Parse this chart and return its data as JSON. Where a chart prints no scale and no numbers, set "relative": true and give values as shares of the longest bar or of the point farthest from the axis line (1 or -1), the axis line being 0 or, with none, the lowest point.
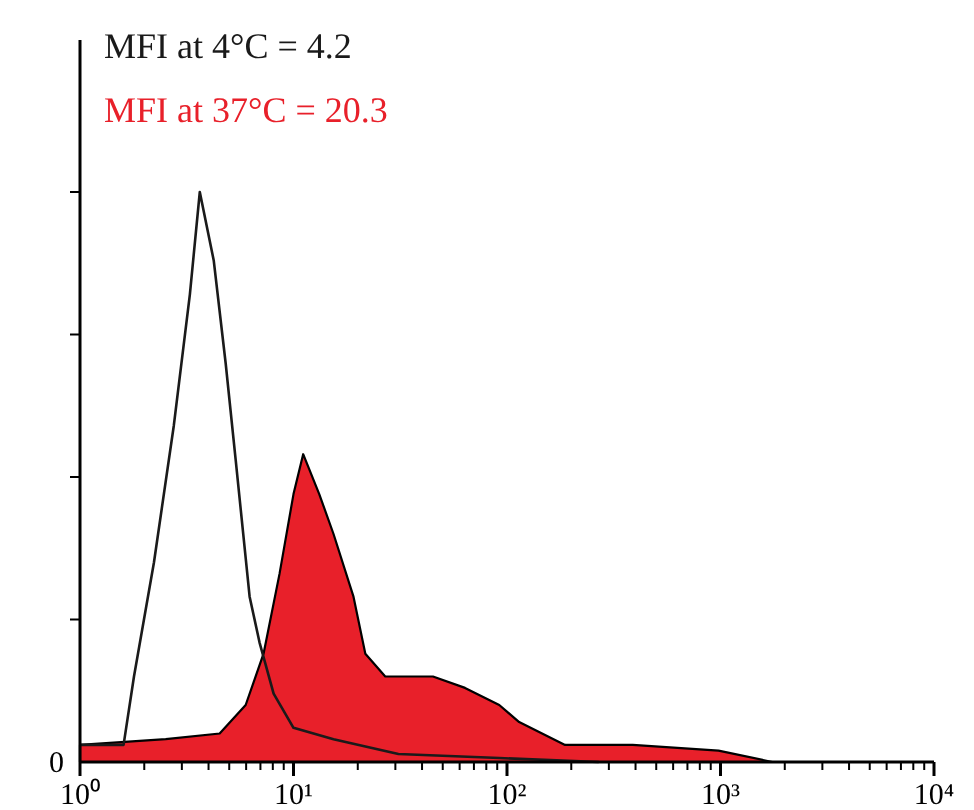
{
  "chart_data": {
    "type": "area",
    "relative": true,
    "log": "x",
    "legend": "top left",
    "grid": false,
    "xlim": [
      1,
      10000
    ],
    "xticks": [
      {
        "value": 1,
        "label": "10⁰"
      },
      {
        "value": 10,
        "label": "10¹"
      },
      {
        "value": 100,
        "label": "10²"
      },
      {
        "value": 1000,
        "label": "10³"
      },
      {
        "value": 10000,
        "label": "10⁴"
      }
    ],
    "annotations": [
      "0"
    ],
    "series": [
      {
        "name": "MFI at 37°C = 20.3",
        "color": "#e8202a",
        "x": [
          1,
          2.52,
          4.51,
          5.97,
          7.24,
          8.6,
          10,
          11.1,
          13.2,
          15.4,
          19.1,
          21.7,
          26.9,
          45,
          63.6,
          92,
          114,
          187,
          388,
          979,
          1750
        ],
        "values": [
          0.03,
          0.04,
          0.05,
          0.1,
          0.19,
          0.33,
          0.47,
          0.54,
          0.47,
          0.4,
          0.29,
          0.19,
          0.15,
          0.15,
          0.13,
          0.1,
          0.07,
          0.03,
          0.03,
          0.02,
          0
        ]
      },
      {
        "name": "MFI at 4°C = 4.2",
        "type": "line",
        "color": "#1a1a1a",
        "x": [
          1,
          1.6,
          1.79,
          2.22,
          2.75,
          3.27,
          3.64,
          4.23,
          4.81,
          5.36,
          6.23,
          6.93,
          8.07,
          10,
          15.4,
          31,
          92,
          269
        ],
        "values": [
          0.03,
          0.03,
          0.15,
          0.35,
          0.59,
          0.82,
          1,
          0.88,
          0.7,
          0.53,
          0.29,
          0.21,
          0.12,
          0.06,
          0.04,
          0.014,
          0.007,
          0
        ]
      }
    ]
  }
}
